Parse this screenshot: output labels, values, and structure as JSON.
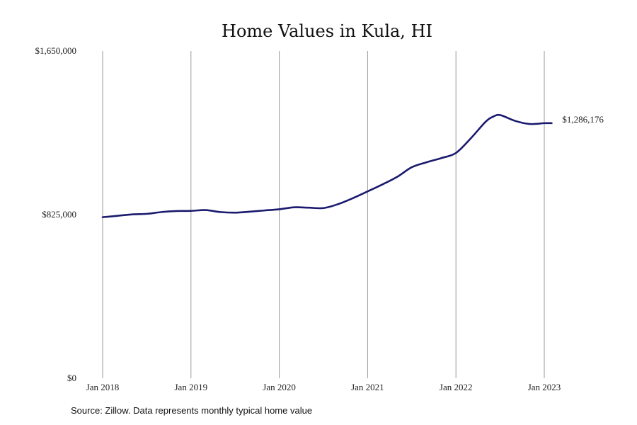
{
  "chart_data": {
    "type": "line",
    "title": "Home Values in Kula, HI",
    "xlabel": "",
    "ylabel": "",
    "ylim": [
      0,
      1650000
    ],
    "y_ticks": [
      {
        "value": 0,
        "label": "$0"
      },
      {
        "value": 825000,
        "label": "$825,000"
      },
      {
        "value": 1650000,
        "label": "$1,650,000"
      }
    ],
    "x_ticks": [
      {
        "value": 2018.0,
        "label": "Jan 2018"
      },
      {
        "value": 2019.0,
        "label": "Jan 2019"
      },
      {
        "value": 2020.0,
        "label": "Jan 2020"
      },
      {
        "value": 2021.0,
        "label": "Jan 2021"
      },
      {
        "value": 2022.0,
        "label": "Jan 2022"
      },
      {
        "value": 2023.0,
        "label": "Jan 2023"
      }
    ],
    "grid": {
      "vertical": true,
      "horizontal": false
    },
    "end_label": "$1,286,176",
    "line_color": "#1a1a6e",
    "series": [
      {
        "x": [
          2018.0,
          2018.1667,
          2018.3333,
          2018.5,
          2018.6667,
          2018.8333,
          2019.0,
          2019.1667,
          2019.3333,
          2019.5,
          2019.6667,
          2019.8333,
          2020.0,
          2020.1667,
          2020.3333,
          2020.5,
          2020.6667,
          2020.8333,
          2021.0,
          2021.1667,
          2021.3333,
          2021.5,
          2021.6667,
          2021.8333,
          2022.0,
          2022.1667,
          2022.3333,
          2022.4167,
          2022.5,
          2022.6667,
          2022.8333,
          2023.0,
          2023.0833
        ],
        "values": [
          812000,
          819000,
          826000,
          829000,
          838000,
          843000,
          844000,
          848000,
          838000,
          835000,
          840000,
          846000,
          852000,
          862000,
          860000,
          858000,
          878000,
          908000,
          942000,
          977000,
          1015000,
          1064000,
          1089000,
          1110000,
          1136000,
          1209000,
          1292000,
          1318000,
          1327000,
          1298000,
          1282000,
          1286176,
          1286176
        ]
      }
    ]
  },
  "source_note": "Source: Zillow. Data represents monthly typical home value"
}
